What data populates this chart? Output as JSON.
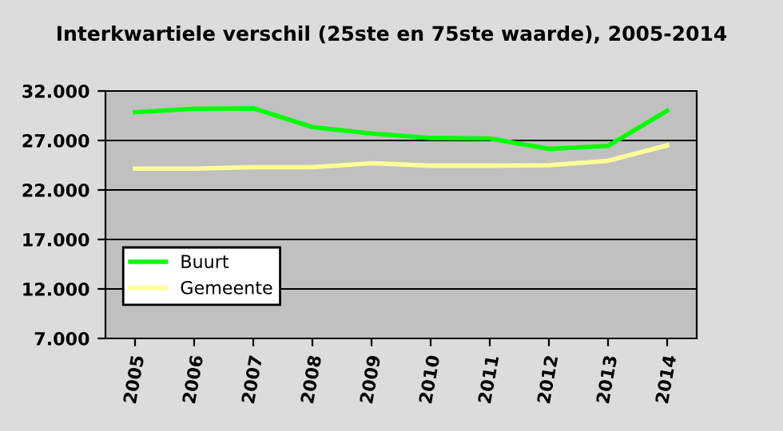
{
  "chart_data": {
    "type": "line",
    "title": "Interkwartiele verschil (25ste en 75ste waarde), 2005-2014",
    "categories": [
      "2005",
      "2006",
      "2007",
      "2008",
      "2009",
      "2010",
      "2011",
      "2012",
      "2013",
      "2014"
    ],
    "series": [
      {
        "name": "Buurt",
        "color": "#00ff00",
        "values": [
          29850,
          30200,
          30250,
          28350,
          27700,
          27250,
          27200,
          26150,
          26450,
          30000
        ]
      },
      {
        "name": "Gemeente",
        "color": "#ffff99",
        "values": [
          24150,
          24150,
          24300,
          24300,
          24700,
          24450,
          24450,
          24500,
          24950,
          26500
        ]
      }
    ],
    "ylim": [
      7000,
      32000
    ],
    "yticks": [
      {
        "value": 7000,
        "label": "7.000"
      },
      {
        "value": 12000,
        "label": "12.000"
      },
      {
        "value": 17000,
        "label": "17.000"
      },
      {
        "value": 22000,
        "label": "22.000"
      },
      {
        "value": 27000,
        "label": "27.000"
      },
      {
        "value": 32000,
        "label": "32.000"
      }
    ],
    "grid": "y",
    "legend": "bottom left",
    "marker": "none",
    "line_style": "solid"
  }
}
